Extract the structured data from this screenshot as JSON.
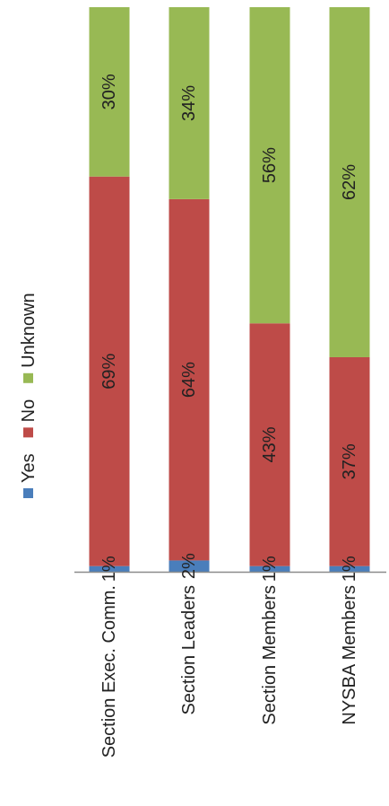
{
  "chart_data": {
    "type": "bar",
    "orientation": "horizontal-stacked-percent",
    "rotated": "90deg-counterclockwise",
    "title": "",
    "xlabel": "",
    "ylabel": "",
    "xlim": [
      0,
      100
    ],
    "grid": false,
    "legend_position": "left",
    "categories": [
      "Section Exec. Comm.",
      "Section Leaders",
      "Section Members",
      "NYSBA Members"
    ],
    "series": [
      {
        "name": "Yes",
        "color": "#4a7ebb",
        "values": [
          1,
          2,
          1,
          1
        ],
        "labels": [
          "1%",
          "2%",
          "1%",
          "1%"
        ]
      },
      {
        "name": "No",
        "color": "#be4b48",
        "values": [
          69,
          64,
          43,
          37
        ],
        "labels": [
          "69%",
          "64%",
          "43%",
          "37%"
        ]
      },
      {
        "name": "Unknown",
        "color": "#98b954",
        "values": [
          30,
          34,
          56,
          62
        ],
        "labels": [
          "30%",
          "34%",
          "56%",
          "62%"
        ]
      }
    ]
  }
}
